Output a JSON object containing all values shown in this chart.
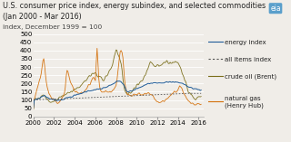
{
  "title": "U.S. consumer price index, energy subindex, and selected commodities",
  "subtitle": "(Jan 2000 - Mar 2016)",
  "ylabel": "index, December 1999 = 100",
  "xlim": [
    2000,
    2016.5
  ],
  "ylim": [
    0,
    500
  ],
  "yticks": [
    0,
    50,
    100,
    150,
    200,
    250,
    300,
    350,
    400,
    450,
    500
  ],
  "xticks": [
    2000,
    2002,
    2004,
    2006,
    2008,
    2010,
    2012,
    2014,
    2016
  ],
  "colors": {
    "energy_index": "#1f5c99",
    "all_items": "#555555",
    "crude_oil": "#7a6e1a",
    "natural_gas": "#d4700a"
  },
  "background_color": "#f0ede8",
  "title_fontsize": 5.8,
  "tick_fontsize": 5.0,
  "legend_fontsize": 5.0
}
